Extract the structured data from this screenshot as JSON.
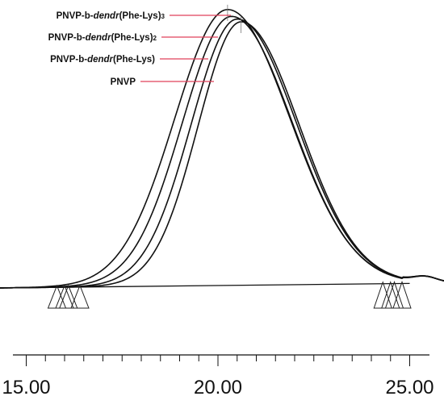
{
  "chart_data": {
    "type": "line",
    "title": "",
    "xlabel": "",
    "ylabel": "",
    "xlim": [
      13.5,
      26.3
    ],
    "ylim": [
      0,
      1
    ],
    "x_ticks_major": [
      "15.00",
      "20.00",
      "25.00"
    ],
    "x_tick_values_major": [
      15,
      20,
      25
    ],
    "x_tick_minor_step": 0.5,
    "grid": false,
    "leader_color": "#e0405a",
    "curve_color": "#111111",
    "series": [
      {
        "name": "PNVP-b-dendr(Phe-Lys)3",
        "name_parts": [
          "PNVP-b-",
          "dendr",
          "(Phe-Lys)",
          "3"
        ],
        "peak_x": 20.25,
        "peak_y": 1.0,
        "sigma_left": 1.38,
        "sigma_right": 1.62,
        "start_x": 15.8,
        "end_x": 24.3
      },
      {
        "name": "PNVP-b-dendr(Phe-Lys)2",
        "name_parts": [
          "PNVP-b-",
          "dendr",
          "(Phe-Lys)",
          "2"
        ],
        "peak_x": 20.35,
        "peak_y": 0.975,
        "sigma_left": 1.28,
        "sigma_right": 1.58,
        "start_x": 16.0,
        "end_x": 24.5
      },
      {
        "name": "PNVP-b-dendr(Phe-Lys)",
        "name_parts": [
          "PNVP-b-",
          "dendr",
          "(Phe-Lys)",
          ""
        ],
        "peak_x": 20.5,
        "peak_y": 0.965,
        "sigma_left": 1.2,
        "sigma_right": 1.55,
        "start_x": 16.1,
        "end_x": 24.6
      },
      {
        "name": "PNVP",
        "name_parts": [
          "PNVP",
          "",
          "",
          ""
        ],
        "peak_x": 20.6,
        "peak_y": 0.955,
        "sigma_left": 1.12,
        "sigma_right": 1.52,
        "start_x": 16.4,
        "end_x": 24.8
      }
    ],
    "legend_placement": "top-left"
  }
}
